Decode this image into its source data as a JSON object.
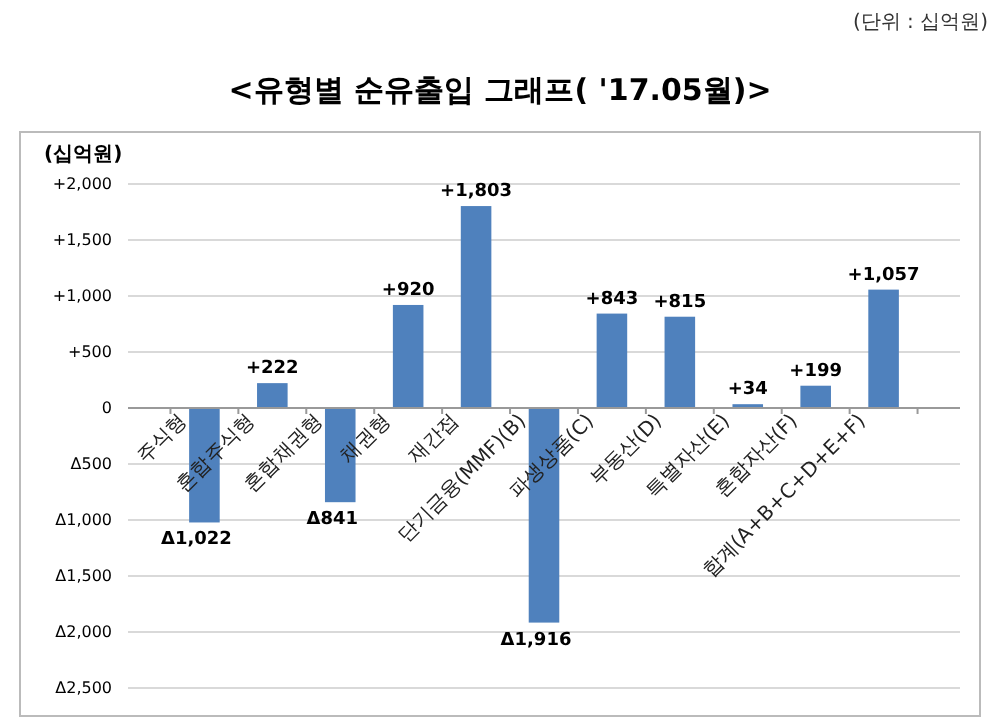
{
  "chart_data": {
    "type": "bar",
    "title": "<유형별 순유출입 그래프( '17.05월)>",
    "ylabel": "(십억원)",
    "annotations": [
      "(단위 : 십억원)"
    ],
    "categories": [
      "주식형",
      "혼합주식형",
      "혼합채권형",
      "채권형",
      "재간접",
      "단기금융(MMF)(B)",
      "파생상품(C)",
      "부동산(D)",
      "특별자산(E)",
      "혼합자산(F)",
      "합계(A+B+C+D+E+F)"
    ],
    "values": [
      -1022,
      222,
      -841,
      920,
      1803,
      -1916,
      843,
      815,
      34,
      199,
      1057
    ],
    "value_labels": [
      "Δ1,022",
      "+222",
      "Δ841",
      "+920",
      "+1,803",
      "Δ1,916",
      "+843",
      "+815",
      "+34",
      "+199",
      "+1,057"
    ],
    "color": "#4f81bd",
    "ylim": [
      -2500,
      2000
    ],
    "yticks": [
      {
        "value": 2000,
        "label": "+2,000"
      },
      {
        "value": 1500,
        "label": "+1,500"
      },
      {
        "value": 1000,
        "label": "+1,000"
      },
      {
        "value": 500,
        "label": "+500"
      },
      0,
      {
        "value": -500,
        "label": "Δ500"
      },
      {
        "value": -1000,
        "label": "Δ1,000"
      },
      {
        "value": -1500,
        "label": "Δ1,500"
      },
      {
        "value": -2000,
        "label": "Δ2,000"
      },
      {
        "value": -2500,
        "label": "Δ2,500"
      }
    ],
    "grid": "y"
  }
}
